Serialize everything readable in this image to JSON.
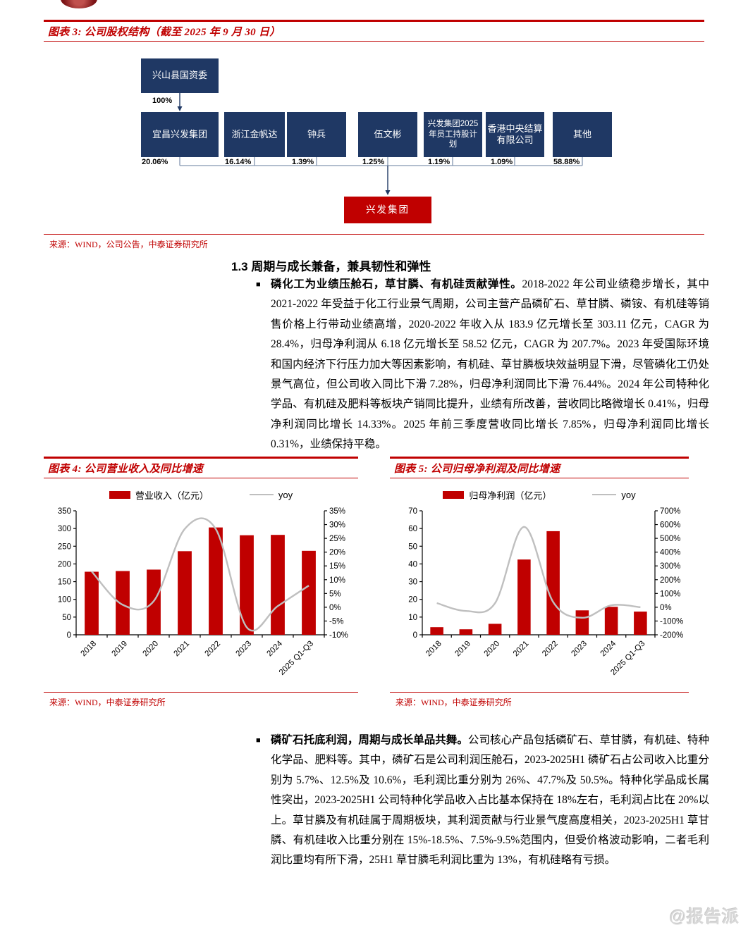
{
  "page": {
    "watermark": "@报告派"
  },
  "colors": {
    "accent_red": "#c00000",
    "navy_box": "#1f3864",
    "line_gray": "#bfbfbf"
  },
  "figure3": {
    "title": "图表 3: 公司股权结构（截至 2025 年 9 月 30 日）",
    "source": "来源：WIND，公司公告，中泰证券研究所",
    "root_label": "兴山县国资委",
    "root_link_pct": "100%",
    "shareholders": [
      {
        "label": "宜昌兴发集团",
        "pct": "20.06%"
      },
      {
        "label": "浙江金帆达",
        "pct": "16.14%"
      },
      {
        "label": "钟兵",
        "pct": "1.39%"
      },
      {
        "label": "伍文彬",
        "pct": "1.25%"
      },
      {
        "label": "兴发集团2025年员工持股计划",
        "pct": "1.19%"
      },
      {
        "label": "香港中央结算有限公司",
        "pct": "1.09%"
      },
      {
        "label": "其他",
        "pct": "58.88%"
      }
    ],
    "company_label": "兴发集团"
  },
  "section": {
    "heading": "1.3 周期与成长兼备，兼具韧性和弹性",
    "bullets": [
      {
        "lead": "磷化工为业绩压舱石，草甘膦、有机硅贡献弹性。",
        "body": "2018-2022 年公司业绩稳步增长，其中 2021-2022 年受益于化工行业景气周期，公司主营产品磷矿石、草甘膦、磷铵、有机硅等销售价格上行带动业绩高增，2020-2022 年收入从 183.9 亿元增长至 303.11 亿元，CAGR 为 28.4%，归母净利润从 6.18 亿元增长至 58.52 亿元，CAGR 为 207.7%。2023 年受国际环境和国内经济下行压力加大等因素影响，有机硅、草甘膦板块效益明显下滑，尽管磷化工仍处景气高位，但公司收入同比下滑 7.28%，归母净利润同比下滑 76.44%。2024 年公司特种化学品、有机硅及肥料等板块产销同比提升，业绩有所改善，营收同比略微增长 0.41%，归母净利润同比增长 14.33%。2025 年前三季度营收同比增长 7.85%，归母净利润同比增长 0.31%，业绩保持平稳。"
      },
      {
        "lead": "磷矿石托底利润，周期与成长单品共舞。",
        "body": "公司核心产品包括磷矿石、草甘膦，有机硅、特种化学品、肥料等。其中，磷矿石是公司利润压舱石，2023-2025H1 磷矿石占公司收入比重分别为 5.7%、12.5%及 10.6%，毛利润比重分别为 26%、47.7%及 50.5%。特种化学品成长属性突出，2023-2025H1 公司特种化学品收入占比基本保持在 18%左右，毛利润占比在 20%以上。草甘膦及有机硅属于周期板块，其利润贡献与行业景气度高度相关，2023-2025H1 草甘膦、有机硅收入比重分别在 15%-18.5%、7.5%-9.5%范围内，但受价格波动影响，二者毛利润比重均有所下滑，25H1 草甘膦毛利润比重为 13%，有机硅略有亏损。"
      }
    ]
  },
  "chart_data": [
    {
      "type": "bar+line",
      "title": "图表 4: 公司营业收入及同比增速",
      "source": "来源：WIND，中泰证券研究所",
      "categories": [
        "2018",
        "2019",
        "2020",
        "2021",
        "2022",
        "2023",
        "2024",
        "2025 Q1-Q3"
      ],
      "series": [
        {
          "name": "营业收入（亿元）",
          "type": "bar",
          "axis": "left",
          "color": "#c00000",
          "values": [
            178,
            180,
            184,
            236,
            303,
            281,
            282,
            237
          ]
        },
        {
          "name": "yoy",
          "type": "line",
          "axis": "right",
          "color": "#bfbfbf",
          "values": [
            13,
            0.9,
            2.2,
            28.4,
            28.4,
            -7.28,
            0.41,
            7.85
          ]
        }
      ],
      "left_axis": {
        "min": 0,
        "max": 350,
        "step": 50,
        "suffix": ""
      },
      "right_axis": {
        "min": -10,
        "max": 35,
        "step": 5,
        "suffix": "%"
      },
      "legend_position": "top",
      "grid": false
    },
    {
      "type": "bar+line",
      "title": "图表 5: 公司归母净利润及同比增速",
      "source": "来源：WIND，中泰证券研究所",
      "categories": [
        "2018",
        "2019",
        "2020",
        "2021",
        "2022",
        "2023",
        "2024",
        "2025 Q1-Q3"
      ],
      "series": [
        {
          "name": "归母净利润（亿元）",
          "type": "bar",
          "axis": "left",
          "color": "#c00000",
          "values": [
            4.3,
            3.1,
            6.2,
            42.5,
            58.5,
            13.8,
            15.8,
            13.1
          ]
        },
        {
          "name": "yoy",
          "type": "line",
          "axis": "right",
          "color": "#bfbfbf",
          "values": [
            30,
            -27,
            29,
            583,
            38,
            -76.4,
            14.3,
            0.3
          ]
        }
      ],
      "left_axis": {
        "min": 0,
        "max": 70,
        "step": 10,
        "suffix": ""
      },
      "right_axis": {
        "min": -200,
        "max": 700,
        "step": 100,
        "suffix": "%"
      },
      "legend_position": "top",
      "grid": false
    }
  ]
}
